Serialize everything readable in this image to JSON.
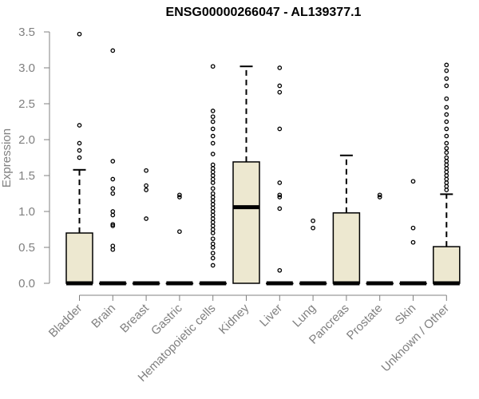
{
  "chart_data": {
    "type": "box",
    "title": "ENSG00000266047 - AL139377.1",
    "xlabel": "",
    "ylabel": "Expression",
    "ylim": [
      0,
      3.5
    ],
    "yticks": [
      "0.0",
      "0.5",
      "1.0",
      "1.5",
      "2.0",
      "2.5",
      "3.0",
      "3.5"
    ],
    "categories": [
      "Bladder",
      "Brain",
      "Breast",
      "Gastric",
      "Hematopoietic cells",
      "Kidney",
      "Liver",
      "Lung",
      "Pancreas",
      "Prostate",
      "Skin",
      "Unknown / Other"
    ],
    "boxes": [
      {
        "category": "Bladder",
        "q1": 0,
        "median": 0,
        "q3": 0.7,
        "whisker_low": 0,
        "whisker_high": 1.58,
        "outliers": [
          1.75,
          1.85,
          1.95,
          2.2,
          3.47
        ]
      },
      {
        "category": "Brain",
        "q1": 0,
        "median": 0,
        "q3": 0,
        "whisker_low": 0,
        "whisker_high": 0,
        "outliers": [
          0.47,
          0.52,
          0.8,
          0.82,
          0.95,
          1.0,
          1.25,
          1.32,
          1.45,
          1.7,
          3.24
        ]
      },
      {
        "category": "Breast",
        "q1": 0,
        "median": 0,
        "q3": 0,
        "whisker_low": 0,
        "whisker_high": 0,
        "outliers": [
          0.9,
          1.3,
          1.36,
          1.57
        ]
      },
      {
        "category": "Gastric",
        "q1": 0,
        "median": 0,
        "q3": 0,
        "whisker_low": 0,
        "whisker_high": 0,
        "outliers": [
          0.72,
          1.2,
          1.23
        ]
      },
      {
        "category": "Hematopoietic cells",
        "q1": 0,
        "median": 0,
        "q3": 0,
        "whisker_low": 0,
        "whisker_high": 0,
        "outliers": [
          0.25,
          0.35,
          0.42,
          0.5,
          0.55,
          0.62,
          0.7,
          0.75,
          0.8,
          0.85,
          0.9,
          0.95,
          1.0,
          1.05,
          1.1,
          1.15,
          1.2,
          1.25,
          1.32,
          1.4,
          1.45,
          1.5,
          1.55,
          1.6,
          1.65,
          1.8,
          1.95,
          2.05,
          2.15,
          2.25,
          2.32,
          2.4,
          3.02
        ]
      },
      {
        "category": "Kidney",
        "q1": 0,
        "median": 1.06,
        "q3": 1.69,
        "whisker_low": 0,
        "whisker_high": 3.02,
        "outliers": []
      },
      {
        "category": "Liver",
        "q1": 0,
        "median": 0,
        "q3": 0,
        "whisker_low": 0,
        "whisker_high": 0,
        "outliers": [
          0.18,
          1.04,
          1.2,
          1.23,
          1.4,
          2.15,
          2.66,
          2.75,
          3.0
        ]
      },
      {
        "category": "Lung",
        "q1": 0,
        "median": 0,
        "q3": 0,
        "whisker_low": 0,
        "whisker_high": 0,
        "outliers": [
          0.77,
          0.87
        ]
      },
      {
        "category": "Pancreas",
        "q1": 0,
        "median": 0,
        "q3": 0.98,
        "whisker_low": 0,
        "whisker_high": 1.78,
        "outliers": []
      },
      {
        "category": "Prostate",
        "q1": 0,
        "median": 0,
        "q3": 0,
        "whisker_low": 0,
        "whisker_high": 0,
        "outliers": [
          1.2,
          1.23
        ]
      },
      {
        "category": "Skin",
        "q1": 0,
        "median": 0,
        "q3": 0,
        "whisker_low": 0,
        "whisker_high": 0,
        "outliers": [
          0.57,
          0.77,
          1.42
        ]
      },
      {
        "category": "Unknown / Other",
        "q1": 0,
        "median": 0,
        "q3": 0.51,
        "whisker_low": 0,
        "whisker_high": 1.24,
        "outliers": [
          1.3,
          1.35,
          1.4,
          1.45,
          1.5,
          1.55,
          1.6,
          1.65,
          1.7,
          1.75,
          1.82,
          1.88,
          1.95,
          2.05,
          2.15,
          2.25,
          2.35,
          2.45,
          2.57,
          2.75,
          2.85,
          2.96,
          3.04
        ]
      }
    ],
    "colors": {
      "box_fill": "#ede8d0",
      "box_stroke": "#000000",
      "axis": "#808080",
      "tick_label": "#808080"
    },
    "grid": false,
    "legend": "none"
  }
}
